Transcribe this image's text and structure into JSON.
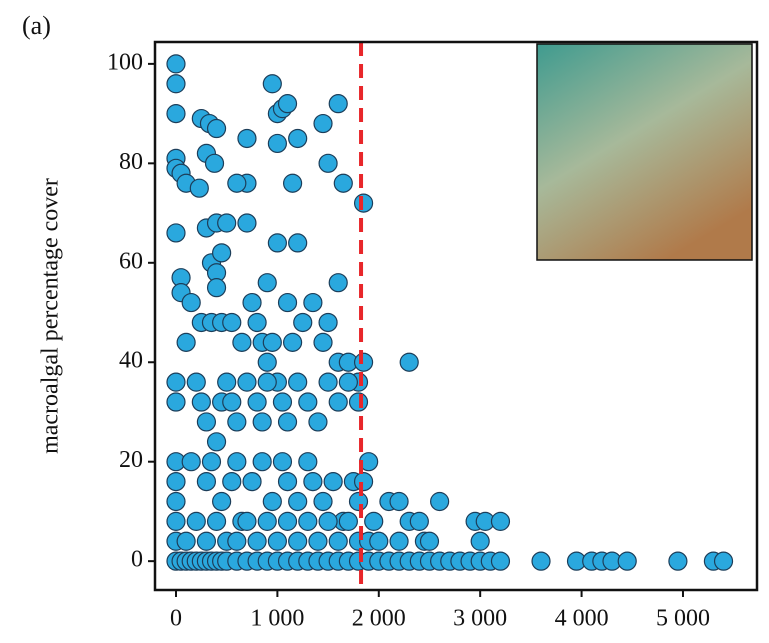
{
  "chart_data": {
    "type": "scatter",
    "panel_label": "(a)",
    "y_label": "macroalgal percentage cover",
    "color": "#2aa8de",
    "edge_color": "#1c3e5a",
    "reference_line": {
      "x": 1825,
      "color": "#e8262a"
    },
    "xlim": [
      -207,
      5730
    ],
    "ylim": [
      -5.8,
      104.4
    ],
    "xticks": [
      0,
      {
        "value": 1000,
        "label": "1 000"
      },
      {
        "value": 2000,
        "label": "2 000"
      },
      {
        "value": 3000,
        "label": "3 000"
      },
      {
        "value": 4000,
        "label": "4 000"
      },
      {
        "value": 5000,
        "label": "5 000"
      }
    ],
    "yticks": [
      0,
      20,
      40,
      60,
      80,
      100
    ],
    "x": [
      0,
      50,
      100,
      150,
      200,
      250,
      300,
      350,
      400,
      450,
      500,
      600,
      700,
      800,
      900,
      1000,
      1100,
      1200,
      1300,
      1400,
      1500,
      1600,
      1700,
      1800,
      1900,
      2000,
      2100,
      2200,
      2300,
      2400,
      2500,
      2600,
      2700,
      2800,
      2900,
      3000,
      3100,
      3200,
      3600,
      3950,
      4100,
      4200,
      4300,
      4450,
      4950,
      5300,
      5400,
      0,
      0,
      0,
      0,
      0,
      50,
      100,
      230,
      250,
      330,
      400,
      300,
      380,
      700,
      700,
      600,
      950,
      1000,
      1050,
      1100,
      1000,
      1200,
      1150,
      1450,
      1500,
      1600,
      1650,
      1850,
      0,
      50,
      50,
      150,
      300,
      400,
      500,
      350,
      400,
      400,
      450,
      700,
      900,
      1000,
      1200,
      1600,
      100,
      250,
      350,
      450,
      550,
      650,
      750,
      800,
      850,
      900,
      950,
      1000,
      1100,
      1150,
      1250,
      1350,
      1450,
      1500,
      1600,
      1700,
      1800,
      1850,
      2300,
      0,
      0,
      200,
      250,
      300,
      400,
      450,
      500,
      550,
      600,
      700,
      800,
      850,
      900,
      1050,
      1100,
      1200,
      1300,
      1400,
      1500,
      1600,
      1700,
      1800,
      0,
      0,
      0,
      150,
      300,
      350,
      450,
      550,
      600,
      650,
      750,
      850,
      950,
      1050,
      1100,
      1200,
      1300,
      1350,
      1450,
      1550,
      1650,
      1750,
      1800,
      1850,
      1900,
      1950,
      2100,
      2200,
      2300,
      2400,
      2450,
      2600,
      2950,
      3050,
      3000,
      3200,
      0,
      0,
      100,
      200,
      300,
      400,
      500,
      600,
      700,
      800,
      900,
      1000,
      1100,
      1200,
      1300,
      1400,
      1500,
      1600,
      1700,
      1800,
      1900,
      2000,
      2200,
      2500
    ],
    "values": [
      0,
      0,
      0,
      0,
      0,
      0,
      0,
      0,
      0,
      0,
      0,
      0,
      0,
      0,
      0,
      0,
      0,
      0,
      0,
      0,
      0,
      0,
      0,
      0,
      0,
      0,
      0,
      0,
      0,
      0,
      0,
      0,
      0,
      0,
      0,
      0,
      0,
      0,
      0,
      0,
      0,
      0,
      0,
      0,
      0,
      0,
      0,
      100,
      96,
      90,
      81,
      79,
      78,
      76,
      75,
      89,
      88,
      87,
      82,
      80,
      85,
      76,
      76,
      96,
      90,
      91,
      92,
      84,
      85,
      76,
      88,
      80,
      92,
      76,
      72,
      66,
      57,
      54,
      52,
      67,
      68,
      68,
      60,
      58,
      55,
      62,
      68,
      56,
      64,
      64,
      56,
      44,
      48,
      48,
      48,
      48,
      44,
      52,
      48,
      44,
      40,
      44,
      36,
      52,
      44,
      48,
      52,
      44,
      48,
      40,
      40,
      36,
      40,
      40,
      36,
      32,
      36,
      32,
      28,
      24,
      32,
      36,
      32,
      28,
      36,
      32,
      28,
      36,
      32,
      28,
      36,
      32,
      28,
      36,
      32,
      36,
      32,
      20,
      16,
      12,
      20,
      16,
      20,
      12,
      16,
      20,
      8,
      16,
      20,
      12,
      20,
      16,
      12,
      20,
      16,
      12,
      16,
      8,
      16,
      12,
      16,
      20,
      8,
      12,
      12,
      8,
      8,
      4,
      12,
      8,
      8,
      4,
      8,
      8,
      4,
      4,
      8,
      4,
      8,
      4,
      4,
      8,
      4,
      8,
      4,
      8,
      4,
      8,
      4,
      8,
      4,
      8,
      4,
      4,
      4,
      4,
      4
    ]
  }
}
